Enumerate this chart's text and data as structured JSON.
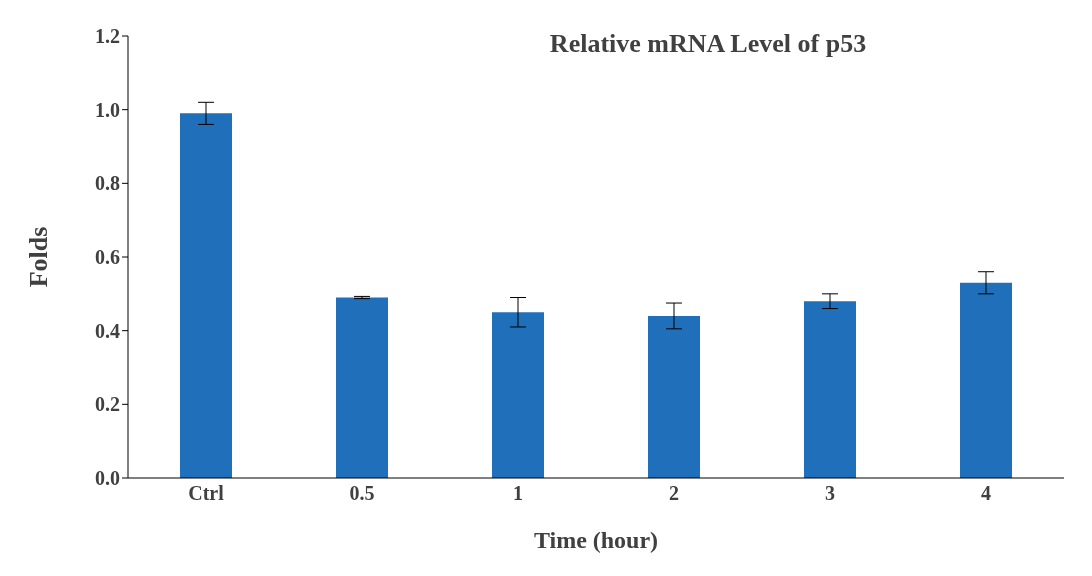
{
  "chart_data": {
    "type": "bar",
    "title": "Relative mRNA Level of p53",
    "xlabel": "Time (hour)",
    "ylabel": "Folds",
    "categories": [
      "Ctrl",
      "0.5",
      "1",
      "2",
      "3",
      "4"
    ],
    "values": [
      0.99,
      0.49,
      0.45,
      0.44,
      0.48,
      0.53
    ],
    "errors": [
      0.03,
      0.003,
      0.04,
      0.035,
      0.02,
      0.03
    ],
    "color": "#1f6fba",
    "ylim": [
      0,
      1.2
    ],
    "yticks": [
      {
        "value": 0,
        "label": "0.0"
      },
      {
        "value": 0.2,
        "label": "0.2"
      },
      {
        "value": 0.4,
        "label": "0.4"
      },
      {
        "value": 0.6,
        "label": "0.6"
      },
      {
        "value": 0.8,
        "label": "0.8"
      },
      {
        "value": 1,
        "label": "1.0"
      },
      {
        "value": 1.2,
        "label": "1.2"
      }
    ],
    "grid": false,
    "legend": false
  }
}
